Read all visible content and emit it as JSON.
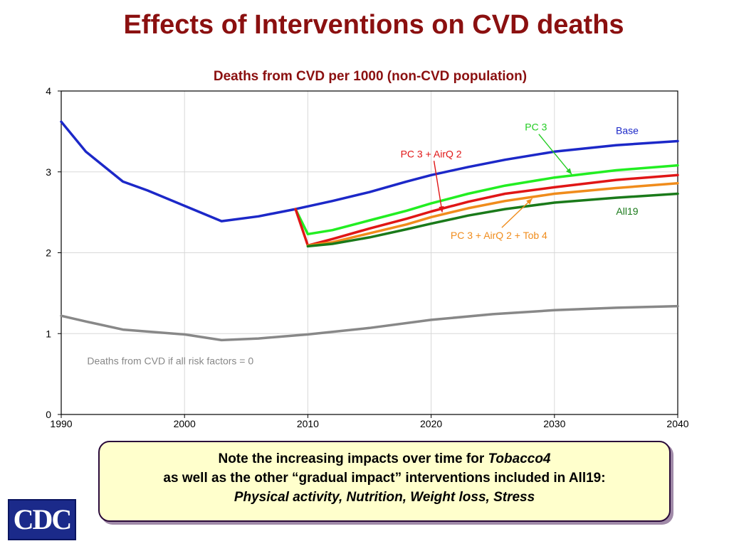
{
  "slide": {
    "title": "Effects of Interventions on CVD deaths",
    "title_color": "#8b1010"
  },
  "chart_data": {
    "type": "line",
    "title": "Deaths from CVD per 1000 (non-CVD population)",
    "title_color": "#8b1010",
    "xlim": [
      1990,
      2040
    ],
    "ylim": [
      0,
      4
    ],
    "xticks": [
      1990,
      2000,
      2010,
      2020,
      2030,
      2040
    ],
    "yticks": [
      0,
      1,
      2,
      3,
      4
    ],
    "grid": true,
    "series": [
      {
        "name": "Base",
        "color": "#1c28c8",
        "points": [
          [
            1990,
            3.62
          ],
          [
            1992,
            3.25
          ],
          [
            1995,
            2.88
          ],
          [
            1997,
            2.77
          ],
          [
            2000,
            2.58
          ],
          [
            2003,
            2.39
          ],
          [
            2006,
            2.45
          ],
          [
            2009,
            2.54
          ],
          [
            2012,
            2.64
          ],
          [
            2015,
            2.75
          ],
          [
            2018,
            2.88
          ],
          [
            2020,
            2.96
          ],
          [
            2023,
            3.06
          ],
          [
            2026,
            3.15
          ],
          [
            2030,
            3.25
          ],
          [
            2035,
            3.33
          ],
          [
            2040,
            3.38
          ]
        ]
      },
      {
        "name": "PC 3",
        "color": "#22ee22",
        "points": [
          [
            2009,
            2.54
          ],
          [
            2010,
            2.23
          ],
          [
            2012,
            2.28
          ],
          [
            2015,
            2.4
          ],
          [
            2018,
            2.52
          ],
          [
            2020,
            2.61
          ],
          [
            2023,
            2.73
          ],
          [
            2026,
            2.83
          ],
          [
            2030,
            2.93
          ],
          [
            2035,
            3.02
          ],
          [
            2040,
            3.08
          ]
        ]
      },
      {
        "name": "PC 3 + AirQ 2",
        "color": "#e01616",
        "points": [
          [
            2009,
            2.54
          ],
          [
            2010,
            2.09
          ],
          [
            2012,
            2.17
          ],
          [
            2015,
            2.3
          ],
          [
            2018,
            2.42
          ],
          [
            2020,
            2.51
          ],
          [
            2023,
            2.63
          ],
          [
            2026,
            2.73
          ],
          [
            2030,
            2.81
          ],
          [
            2035,
            2.9
          ],
          [
            2040,
            2.96
          ]
        ]
      },
      {
        "name": "PC 3 + AirQ 2 + Tob 4",
        "color": "#f08c1c",
        "points": [
          [
            2010,
            2.09
          ],
          [
            2012,
            2.13
          ],
          [
            2015,
            2.24
          ],
          [
            2018,
            2.35
          ],
          [
            2020,
            2.44
          ],
          [
            2023,
            2.55
          ],
          [
            2026,
            2.64
          ],
          [
            2030,
            2.73
          ],
          [
            2035,
            2.8
          ],
          [
            2040,
            2.86
          ]
        ]
      },
      {
        "name": "All19",
        "color": "#1a7a1a",
        "points": [
          [
            2010,
            2.08
          ],
          [
            2012,
            2.11
          ],
          [
            2015,
            2.19
          ],
          [
            2018,
            2.29
          ],
          [
            2020,
            2.36
          ],
          [
            2023,
            2.46
          ],
          [
            2026,
            2.54
          ],
          [
            2030,
            2.62
          ],
          [
            2035,
            2.68
          ],
          [
            2040,
            2.73
          ]
        ]
      },
      {
        "name": "Deaths from CVD if all risk factors = 0",
        "color": "#888888",
        "points": [
          [
            1990,
            1.22
          ],
          [
            1992,
            1.15
          ],
          [
            1995,
            1.05
          ],
          [
            2000,
            0.99
          ],
          [
            2003,
            0.92
          ],
          [
            2006,
            0.94
          ],
          [
            2010,
            0.99
          ],
          [
            2015,
            1.07
          ],
          [
            2020,
            1.17
          ],
          [
            2025,
            1.24
          ],
          [
            2030,
            1.29
          ],
          [
            2035,
            1.32
          ],
          [
            2040,
            1.34
          ]
        ]
      }
    ],
    "annotations": [
      {
        "text": "Base",
        "color": "#1c28c8",
        "x": 2035.9,
        "y": 3.47,
        "anchor": "middle"
      },
      {
        "text": "PC 3",
        "color": "#22cc22",
        "x": 2028.5,
        "y": 3.51,
        "anchor": "middle",
        "arrow_to": [
          2031.4,
          2.97
        ]
      },
      {
        "text": "PC 3 + AirQ 2",
        "color": "#e01616",
        "x": 2020.0,
        "y": 3.18,
        "anchor": "middle",
        "arrow_to": [
          2020.9,
          2.5
        ]
      },
      {
        "text": "All19",
        "color": "#1a7a1a",
        "x": 2035.9,
        "y": 2.47,
        "anchor": "middle"
      },
      {
        "text": "PC 3 + AirQ 2 + Tob 4",
        "color": "#f08c1c",
        "x": 2025.5,
        "y": 2.17,
        "anchor": "middle",
        "arrow_to": [
          2028.2,
          2.67
        ]
      },
      {
        "text": "Deaths from CVD if all risk factors = 0",
        "color": "#888888",
        "x": 1992.1,
        "y": 0.62,
        "anchor": "start"
      }
    ]
  },
  "note": {
    "line1": "Note the increasing impacts over time for ",
    "line1_italic": "Tobacco4",
    "line2": "as well as the other “gradual impact” interventions included in All19:",
    "line3": "Physical activity, Nutrition, Weight loss, Stress"
  },
  "logo": {
    "text": "CDC"
  }
}
